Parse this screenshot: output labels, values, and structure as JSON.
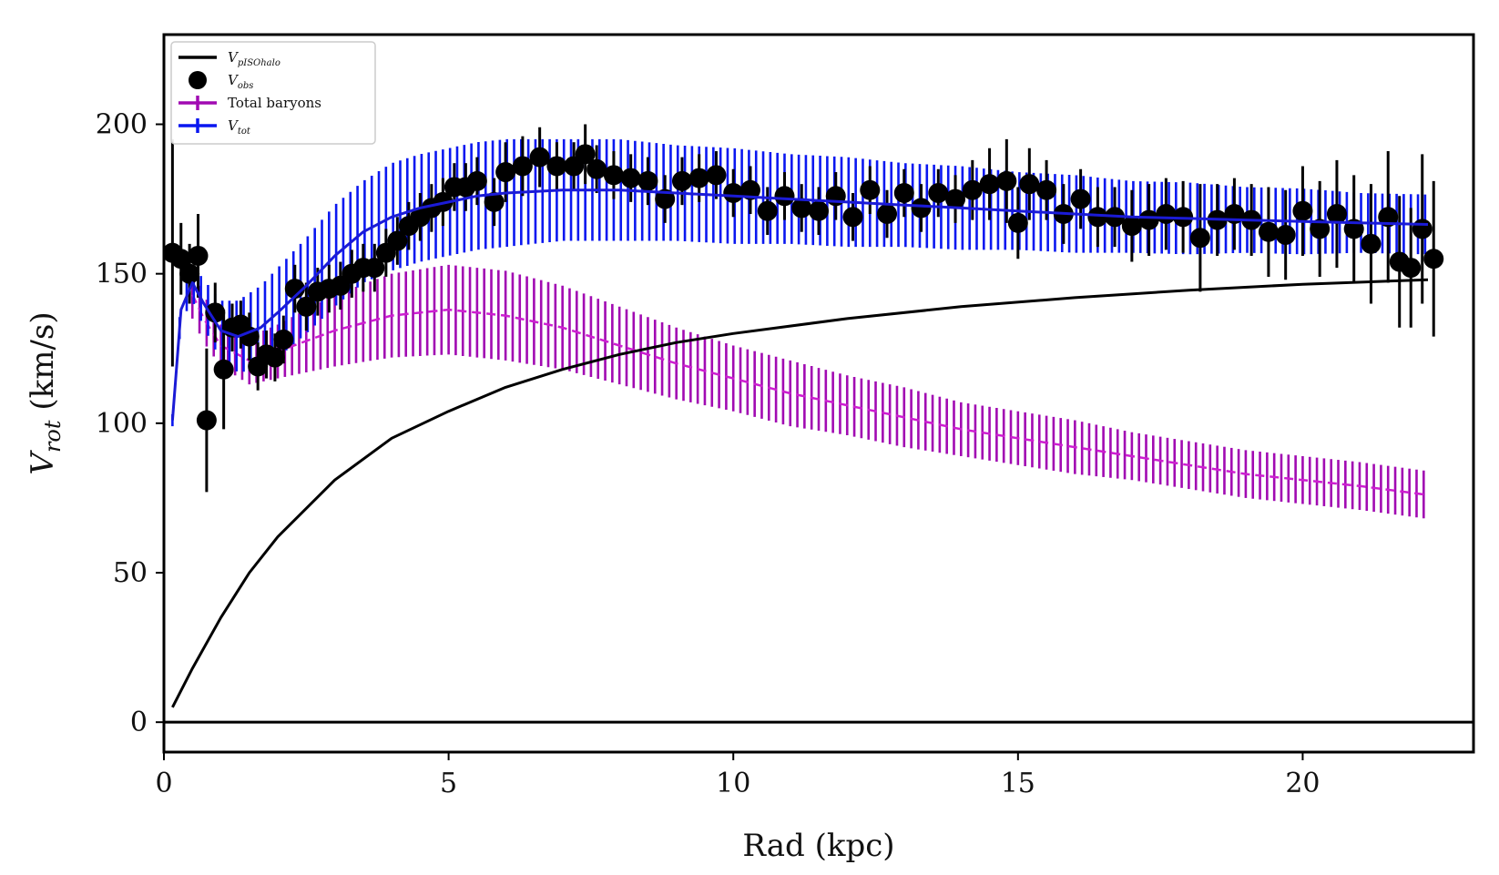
{
  "chart_data": {
    "type": "line",
    "xlabel": "Rad (kpc)",
    "ylabel": {
      "main": "V",
      "sub": "rot",
      "unit": " (km/s)"
    },
    "xlim": [
      0,
      23
    ],
    "ylim": [
      -10,
      230
    ],
    "xticks": [
      0,
      5,
      10,
      15,
      20
    ],
    "yticks": [
      0,
      50,
      100,
      150,
      200
    ],
    "grid": false,
    "legend_position": "top-left",
    "legend": [
      {
        "label": "V",
        "sub": "pISOhalo",
        "style": "line",
        "color": "#000000"
      },
      {
        "label": "V",
        "sub": "obs",
        "style": "marker",
        "color": "#000000"
      },
      {
        "label": "Total baryons",
        "sub": "",
        "style": "errorbar",
        "color": "#aa00aa"
      },
      {
        "label": "V",
        "sub": "tot",
        "style": "errorbar",
        "color": "#0000ff"
      }
    ],
    "colors": {
      "halo": "#000000",
      "obs": "#000000",
      "baryons": "#a10ab2",
      "baryons_line": "#cc1fd0",
      "total": "#0a17f0",
      "total_line": "#1b1bd6"
    },
    "series": [
      {
        "name": "V_pISOhalo",
        "x": [
          0.15,
          0.5,
          1,
          1.5,
          2,
          3,
          4,
          5,
          6,
          7,
          8,
          9,
          10,
          12,
          14,
          16,
          18,
          20,
          22.2
        ],
        "values": [
          5,
          18,
          35,
          50,
          62,
          81,
          95,
          104,
          112,
          118,
          123,
          127,
          130,
          135,
          139,
          142,
          144.5,
          146.5,
          148
        ]
      },
      {
        "name": "Total baryons",
        "x": [
          0.5,
          0.7,
          1,
          1.5,
          2,
          3,
          4,
          5,
          6,
          7,
          8,
          9,
          10,
          11,
          12,
          13,
          14,
          15,
          16,
          17,
          18,
          19,
          20,
          21,
          22.2
        ],
        "values": [
          143,
          135,
          126,
          121,
          124,
          131,
          136,
          138,
          136,
          132,
          126,
          120,
          115,
          110,
          106,
          102,
          98,
          95,
          92,
          89,
          86,
          83,
          81,
          79,
          76
        ],
        "errors": [
          8,
          8,
          7,
          8,
          9,
          12,
          14,
          15,
          15,
          14,
          13,
          12,
          11,
          11,
          10,
          10,
          9,
          9,
          9,
          8,
          8,
          8,
          8,
          8,
          8
        ]
      },
      {
        "name": "V_tot",
        "x": [
          0.15,
          0.3,
          0.5,
          0.7,
          1,
          1.3,
          1.7,
          2,
          2.5,
          3,
          3.5,
          4,
          4.5,
          5,
          5.5,
          6,
          7,
          8,
          9,
          10,
          11,
          12,
          13,
          14,
          15,
          16,
          17,
          18,
          19,
          20,
          21,
          22.2
        ],
        "values": [
          101,
          138,
          147,
          140,
          131,
          129,
          132,
          137,
          146,
          156,
          164,
          169,
          172,
          174,
          176,
          177,
          178,
          178,
          177,
          176,
          175,
          174,
          173,
          172,
          171,
          170,
          169,
          168.5,
          168,
          167.5,
          167,
          166.5
        ],
        "errors": [
          2,
          4,
          6,
          8,
          10,
          12,
          14,
          15,
          16,
          17,
          17,
          18,
          18,
          18,
          18,
          18,
          17,
          17,
          16,
          16,
          15,
          15,
          14,
          14,
          13,
          13,
          12,
          12,
          11,
          11,
          10,
          10
        ]
      },
      {
        "name": "V_obs",
        "x": [
          0.15,
          0.3,
          0.45,
          0.6,
          0.75,
          0.9,
          1.05,
          1.2,
          1.35,
          1.5,
          1.65,
          1.8,
          1.95,
          2.1,
          2.3,
          2.5,
          2.7,
          2.9,
          3.1,
          3.3,
          3.5,
          3.7,
          3.9,
          4.1,
          4.3,
          4.5,
          4.7,
          4.9,
          5.1,
          5.3,
          5.5,
          5.8,
          6.0,
          6.3,
          6.6,
          6.9,
          7.2,
          7.4,
          7.6,
          7.9,
          8.2,
          8.5,
          8.8,
          9.1,
          9.4,
          9.7,
          10.0,
          10.3,
          10.6,
          10.9,
          11.2,
          11.5,
          11.8,
          12.1,
          12.4,
          12.7,
          13.0,
          13.3,
          13.6,
          13.9,
          14.2,
          14.5,
          14.8,
          15.0,
          15.2,
          15.5,
          15.8,
          16.1,
          16.4,
          16.7,
          17.0,
          17.3,
          17.6,
          17.9,
          18.2,
          18.5,
          18.8,
          19.1,
          19.4,
          19.7,
          20.0,
          20.3,
          20.6,
          20.9,
          21.2,
          21.5,
          21.7,
          21.9,
          22.1,
          22.3
        ],
        "values": [
          157,
          155,
          150,
          156,
          101,
          137,
          118,
          132,
          133,
          129,
          119,
          123,
          122,
          128,
          145,
          139,
          144,
          145,
          146,
          150,
          152,
          152,
          157,
          161,
          166,
          169,
          172,
          174,
          179,
          179,
          181,
          174,
          184,
          186,
          189,
          186,
          186,
          190,
          185,
          183,
          182,
          181,
          175,
          181,
          182,
          183,
          177,
          178,
          171,
          176,
          172,
          171,
          176,
          169,
          178,
          170,
          177,
          172,
          177,
          175,
          178,
          180,
          181,
          167,
          180,
          178,
          170,
          175,
          169,
          169,
          166,
          168,
          170,
          169,
          162,
          168,
          170,
          168,
          164,
          163,
          171,
          165,
          170,
          165,
          160,
          169,
          154,
          152,
          165,
          155
        ],
        "errors": [
          38,
          12,
          10,
          14,
          24,
          10,
          20,
          8,
          8,
          8,
          8,
          8,
          8,
          8,
          8,
          8,
          8,
          8,
          8,
          8,
          8,
          8,
          8,
          8,
          8,
          8,
          8,
          8,
          8,
          8,
          8,
          8,
          10,
          10,
          10,
          8,
          8,
          10,
          8,
          8,
          8,
          8,
          8,
          8,
          8,
          8,
          8,
          8,
          8,
          8,
          8,
          8,
          8,
          8,
          8,
          8,
          8,
          8,
          8,
          8,
          10,
          12,
          14,
          12,
          12,
          10,
          10,
          10,
          10,
          10,
          12,
          12,
          12,
          12,
          18,
          12,
          12,
          12,
          15,
          15,
          15,
          16,
          18,
          18,
          20,
          22,
          22,
          20,
          25,
          26
        ]
      }
    ]
  }
}
